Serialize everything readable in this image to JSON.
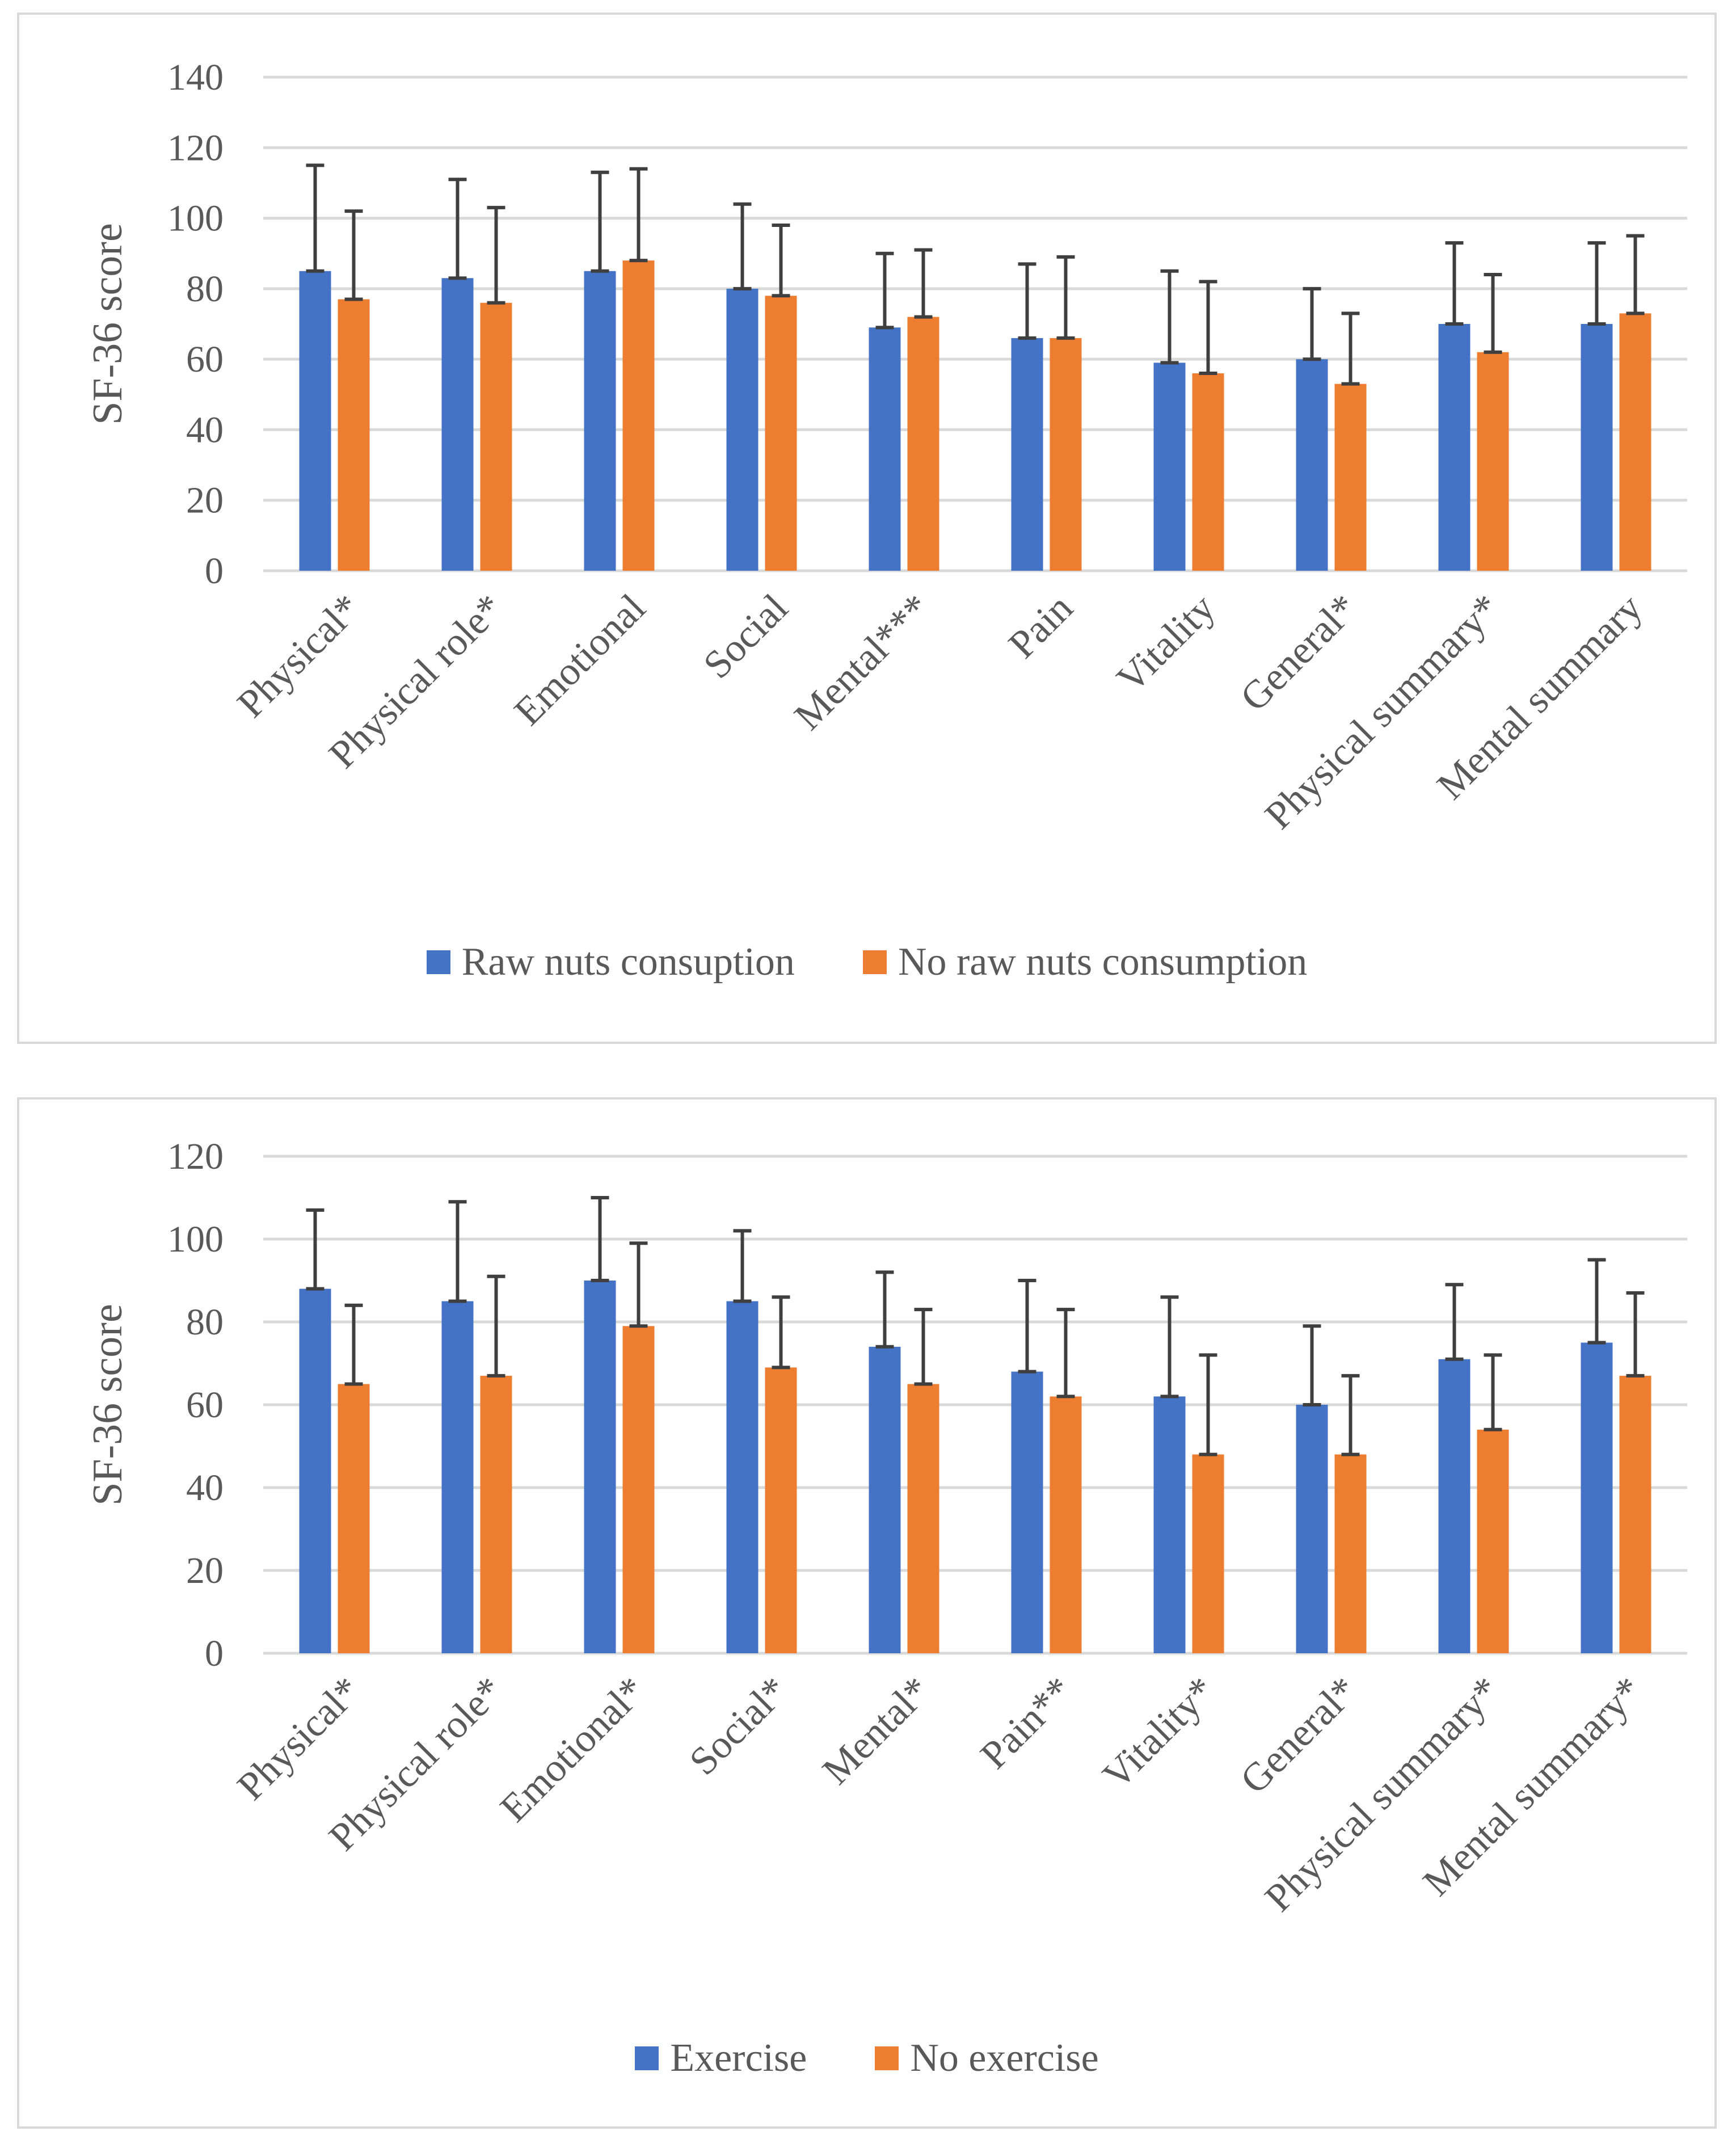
{
  "chart_data": [
    {
      "type": "bar",
      "ylabel": "SF-36 score",
      "ylim": [
        0,
        140
      ],
      "yticks": [
        0,
        20,
        40,
        60,
        80,
        100,
        120,
        140
      ],
      "grid": true,
      "legend_position": "bottom",
      "categories": [
        "Physical*",
        "Physical role*",
        "Emotional",
        "Social",
        "Mental***",
        "Pain",
        "Vitality",
        "General*",
        "Physical summary*",
        "Mental summary"
      ],
      "series": [
        {
          "name": "Raw nuts consuption",
          "color": "#4472c4",
          "values": [
            85,
            83,
            85,
            80,
            69,
            66,
            59,
            60,
            70,
            70
          ],
          "error_upper": [
            115,
            111,
            113,
            104,
            90,
            87,
            85,
            80,
            93,
            93
          ]
        },
        {
          "name": "No raw nuts consumption",
          "color": "#ed7d31",
          "values": [
            77,
            76,
            88,
            78,
            72,
            66,
            56,
            53,
            62,
            73
          ],
          "error_upper": [
            102,
            103,
            114,
            98,
            91,
            89,
            82,
            73,
            84,
            95
          ]
        }
      ]
    },
    {
      "type": "bar",
      "ylabel": "SF-36 score",
      "ylim": [
        0,
        120
      ],
      "yticks": [
        0,
        20,
        40,
        60,
        80,
        100,
        120
      ],
      "grid": true,
      "legend_position": "bottom",
      "categories": [
        "Physical*",
        "Physical role*",
        "Emotional*",
        "Social*",
        "Mental*",
        "Pain**",
        "Vitality*",
        "General*",
        "Physical summary*",
        "Mental summary*"
      ],
      "series": [
        {
          "name": "Exercise",
          "color": "#4472c4",
          "values": [
            88,
            85,
            90,
            85,
            74,
            68,
            62,
            60,
            71,
            75
          ],
          "error_upper": [
            107,
            109,
            110,
            102,
            92,
            90,
            86,
            79,
            89,
            95
          ]
        },
        {
          "name": "No exercise",
          "color": "#ed7d31",
          "values": [
            65,
            67,
            79,
            69,
            65,
            62,
            48,
            48,
            54,
            67
          ],
          "error_upper": [
            84,
            91,
            99,
            86,
            83,
            83,
            72,
            67,
            72,
            87
          ]
        }
      ]
    }
  ]
}
